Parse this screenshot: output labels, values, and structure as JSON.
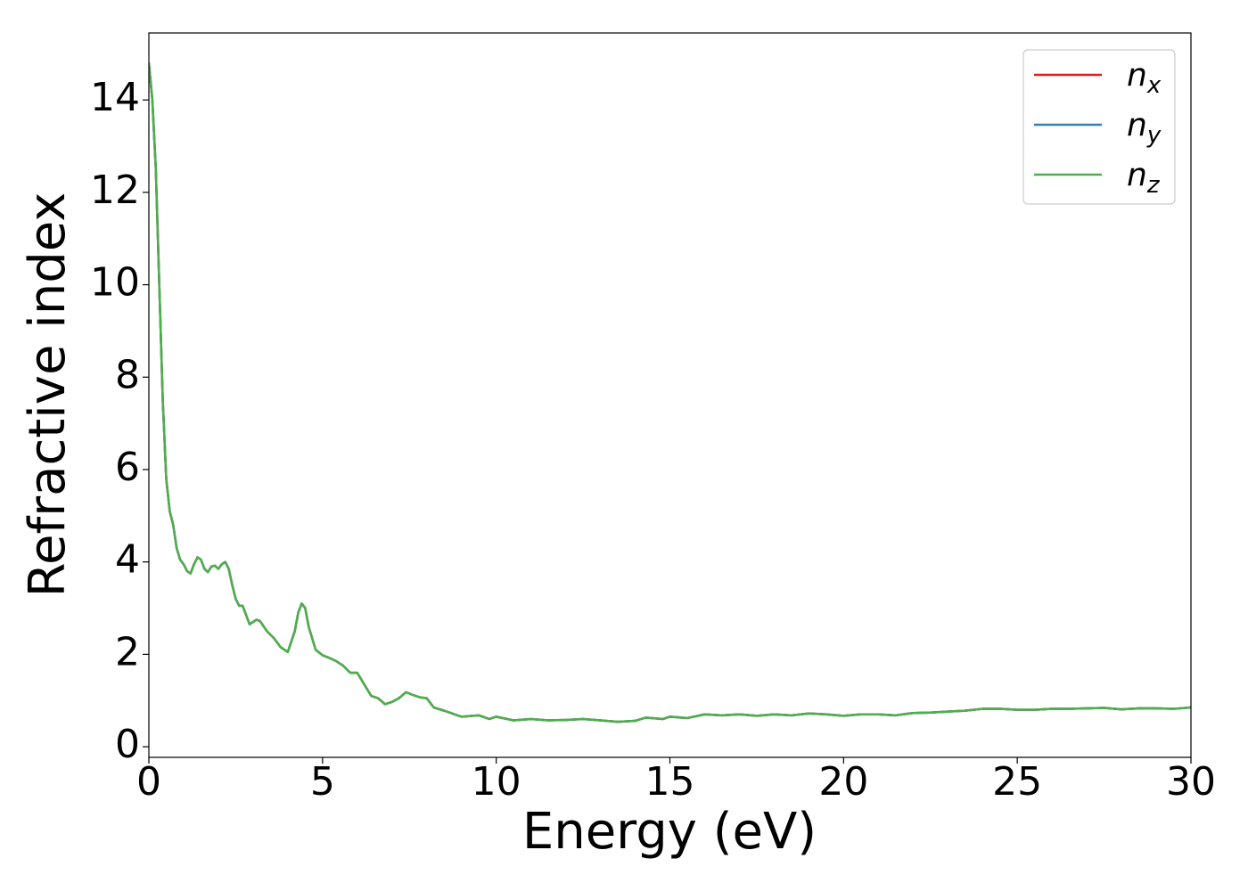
{
  "chart_data": {
    "type": "line",
    "xlabel": "Energy (eV)",
    "ylabel": "Refractive index",
    "x": [
      0,
      0.1,
      0.2,
      0.3,
      0.4,
      0.5,
      0.6,
      0.7,
      0.8,
      0.9,
      1.0,
      1.1,
      1.2,
      1.3,
      1.4,
      1.5,
      1.6,
      1.7,
      1.8,
      1.9,
      2.0,
      2.1,
      2.2,
      2.3,
      2.4,
      2.5,
      2.6,
      2.7,
      2.8,
      2.9,
      3.0,
      3.1,
      3.2,
      3.4,
      3.6,
      3.8,
      4.0,
      4.2,
      4.3,
      4.4,
      4.5,
      4.6,
      4.8,
      5.0,
      5.2,
      5.4,
      5.6,
      5.8,
      6.0,
      6.2,
      6.4,
      6.6,
      6.8,
      7.0,
      7.2,
      7.4,
      7.6,
      7.8,
      8.0,
      8.2,
      8.5,
      9.0,
      9.5,
      9.8,
      10.0,
      10.5,
      11,
      11.5,
      12,
      12.5,
      13,
      13.5,
      14,
      14.3,
      14.8,
      15,
      15.5,
      16,
      16.5,
      17,
      17.5,
      18,
      18.5,
      19,
      19.5,
      20,
      20.5,
      21,
      21.5,
      22,
      22.5,
      23,
      23.5,
      24,
      24.5,
      25,
      25.5,
      26,
      26.5,
      27,
      27.5,
      28,
      28.5,
      29,
      29.5,
      30
    ],
    "series": [
      {
        "name": "n_x",
        "color": "#e41a1c",
        "values": [
          14.8,
          14,
          12.5,
          10,
          7.5,
          5.8,
          5.1,
          4.8,
          4.3,
          4.05,
          3.95,
          3.8,
          3.75,
          3.95,
          4.1,
          4.05,
          3.85,
          3.78,
          3.9,
          3.92,
          3.85,
          3.95,
          4.0,
          3.85,
          3.5,
          3.2,
          3.05,
          3.05,
          2.85,
          2.65,
          2.7,
          2.75,
          2.72,
          2.5,
          2.35,
          2.15,
          2.05,
          2.5,
          2.9,
          3.1,
          3.0,
          2.6,
          2.1,
          1.98,
          1.92,
          1.85,
          1.75,
          1.6,
          1.6,
          1.35,
          1.1,
          1.05,
          0.92,
          0.97,
          1.05,
          1.18,
          1.12,
          1.07,
          1.05,
          0.85,
          0.78,
          0.65,
          0.68,
          0.6,
          0.65,
          0.57,
          0.6,
          0.57,
          0.58,
          0.6,
          0.57,
          0.54,
          0.56,
          0.63,
          0.6,
          0.65,
          0.62,
          0.7,
          0.68,
          0.7,
          0.67,
          0.7,
          0.68,
          0.72,
          0.7,
          0.67,
          0.7,
          0.7,
          0.68,
          0.73,
          0.74,
          0.76,
          0.78,
          0.82,
          0.82,
          0.8,
          0.8,
          0.82,
          0.82,
          0.83,
          0.84,
          0.81,
          0.83,
          0.83,
          0.82,
          0.85
        ]
      },
      {
        "name": "n_y",
        "color": "#377eb8",
        "values": [
          14.8,
          14,
          12.5,
          10,
          7.5,
          5.8,
          5.1,
          4.8,
          4.3,
          4.05,
          3.95,
          3.8,
          3.75,
          3.95,
          4.1,
          4.05,
          3.85,
          3.78,
          3.9,
          3.92,
          3.85,
          3.95,
          4.0,
          3.85,
          3.5,
          3.2,
          3.05,
          3.05,
          2.85,
          2.65,
          2.7,
          2.75,
          2.72,
          2.5,
          2.35,
          2.15,
          2.05,
          2.5,
          2.9,
          3.1,
          3.0,
          2.6,
          2.1,
          1.98,
          1.92,
          1.85,
          1.75,
          1.6,
          1.6,
          1.35,
          1.1,
          1.05,
          0.92,
          0.97,
          1.05,
          1.18,
          1.12,
          1.07,
          1.05,
          0.85,
          0.78,
          0.65,
          0.68,
          0.6,
          0.65,
          0.57,
          0.6,
          0.57,
          0.58,
          0.6,
          0.57,
          0.54,
          0.56,
          0.63,
          0.6,
          0.65,
          0.62,
          0.7,
          0.68,
          0.7,
          0.67,
          0.7,
          0.68,
          0.72,
          0.7,
          0.67,
          0.7,
          0.7,
          0.68,
          0.73,
          0.74,
          0.76,
          0.78,
          0.82,
          0.82,
          0.8,
          0.8,
          0.82,
          0.82,
          0.83,
          0.84,
          0.81,
          0.83,
          0.83,
          0.82,
          0.85
        ]
      },
      {
        "name": "n_z",
        "color": "#4daf4a",
        "values": [
          14.8,
          14,
          12.5,
          10,
          7.5,
          5.8,
          5.1,
          4.8,
          4.3,
          4.05,
          3.95,
          3.8,
          3.75,
          3.95,
          4.1,
          4.05,
          3.85,
          3.78,
          3.9,
          3.92,
          3.85,
          3.95,
          4.0,
          3.85,
          3.5,
          3.2,
          3.05,
          3.05,
          2.85,
          2.65,
          2.7,
          2.75,
          2.72,
          2.5,
          2.35,
          2.15,
          2.05,
          2.5,
          2.9,
          3.1,
          3.0,
          2.6,
          2.1,
          1.98,
          1.92,
          1.85,
          1.75,
          1.6,
          1.6,
          1.35,
          1.1,
          1.05,
          0.92,
          0.97,
          1.05,
          1.18,
          1.12,
          1.07,
          1.05,
          0.85,
          0.78,
          0.65,
          0.68,
          0.6,
          0.65,
          0.57,
          0.6,
          0.57,
          0.58,
          0.6,
          0.57,
          0.54,
          0.56,
          0.63,
          0.6,
          0.65,
          0.62,
          0.7,
          0.68,
          0.7,
          0.67,
          0.7,
          0.68,
          0.72,
          0.7,
          0.67,
          0.7,
          0.7,
          0.68,
          0.73,
          0.74,
          0.76,
          0.78,
          0.82,
          0.82,
          0.8,
          0.8,
          0.82,
          0.82,
          0.83,
          0.84,
          0.81,
          0.83,
          0.83,
          0.82,
          0.85
        ]
      }
    ],
    "xlim": [
      0,
      30
    ],
    "xticks": [
      0,
      5,
      10,
      15,
      20,
      25,
      30
    ],
    "ylim": [
      -0.23,
      15.45
    ],
    "yticks": [
      0,
      2,
      4,
      6,
      8,
      10,
      12,
      14
    ],
    "grid": false,
    "legend": "upper right"
  }
}
